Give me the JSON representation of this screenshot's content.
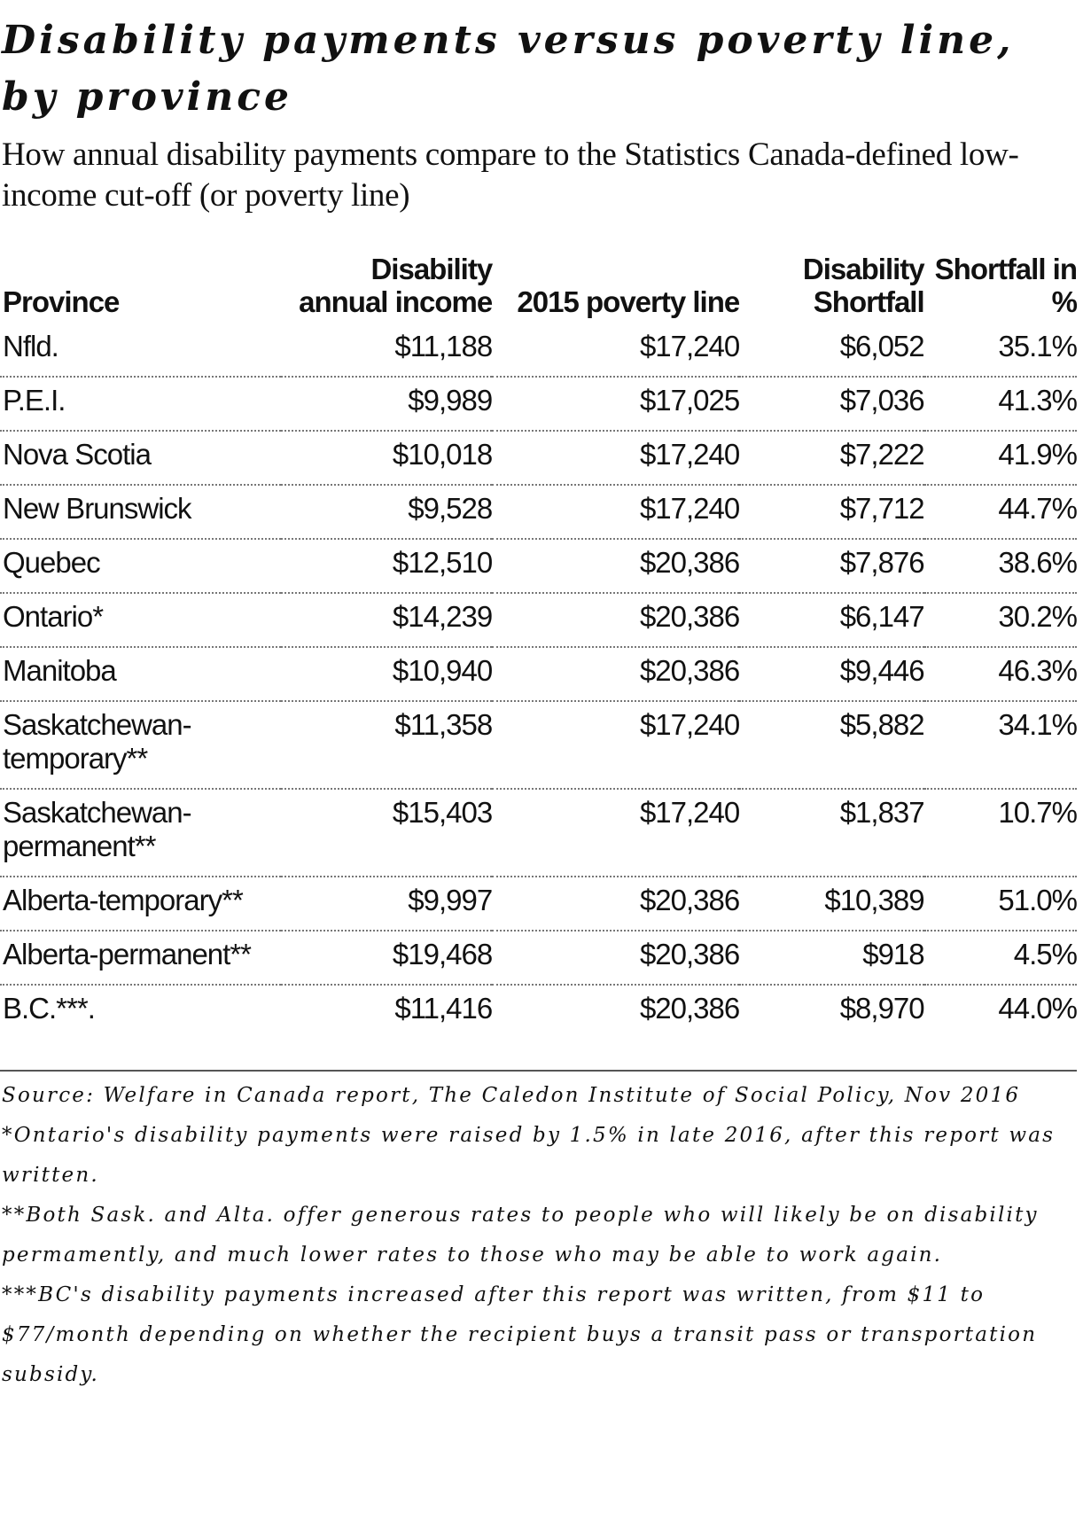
{
  "title": "Disability payments versus poverty line, by province",
  "subtitle": "How annual disability payments compare to the Statistics Canada-defined low-income cut-off (or poverty line)",
  "table": {
    "headers": [
      "Province",
      "Disability annual income",
      "2015 poverty line",
      "Disability Shortfall",
      "Shortfall in %"
    ],
    "rows": [
      [
        "Nfld.",
        "$11,188",
        "$17,240",
        "$6,052",
        "35.1%"
      ],
      [
        "P.E.I.",
        "$9,989",
        "$17,025",
        "$7,036",
        "41.3%"
      ],
      [
        "Nova Scotia",
        "$10,018",
        "$17,240",
        "$7,222",
        "41.9%"
      ],
      [
        "New Brunswick",
        "$9,528",
        "$17,240",
        "$7,712",
        "44.7%"
      ],
      [
        "Quebec",
        "$12,510",
        "$20,386",
        "$7,876",
        "38.6%"
      ],
      [
        "Ontario*",
        "$14,239",
        "$20,386",
        "$6,147",
        "30.2%"
      ],
      [
        "Manitoba",
        "$10,940",
        "$20,386",
        "$9,446",
        "46.3%"
      ],
      [
        "Saskatchewan-temporary**",
        "$11,358",
        "$17,240",
        "$5,882",
        "34.1%"
      ],
      [
        "Saskatchewan-permanent**",
        "$15,403",
        "$17,240",
        "$1,837",
        "10.7%"
      ],
      [
        "Alberta-temporary**",
        "$9,997",
        "$20,386",
        "$10,389",
        "51.0%"
      ],
      [
        "Alberta-permanent**",
        "$19,468",
        "$20,386",
        "$918",
        "4.5%"
      ],
      [
        "B.C.***.",
        "$11,416",
        "$20,386",
        "$8,970",
        "44.0%"
      ]
    ]
  },
  "notes": [
    "Source: Welfare in Canada report, The Caledon Institute of Social Policy, Nov 2016",
    "*Ontario's disability payments were raised by 1.5% in late 2016, after this report was written.",
    "**Both Sask. and Alta. offer generous rates to people who will likely be on disability permamently, and much lower rates to those who may be able to work again.",
    "***BC's disability payments increased after this report was written, from $11 to $77/month depending on whether the recipient buys a transit pass or transportation subsidy."
  ]
}
